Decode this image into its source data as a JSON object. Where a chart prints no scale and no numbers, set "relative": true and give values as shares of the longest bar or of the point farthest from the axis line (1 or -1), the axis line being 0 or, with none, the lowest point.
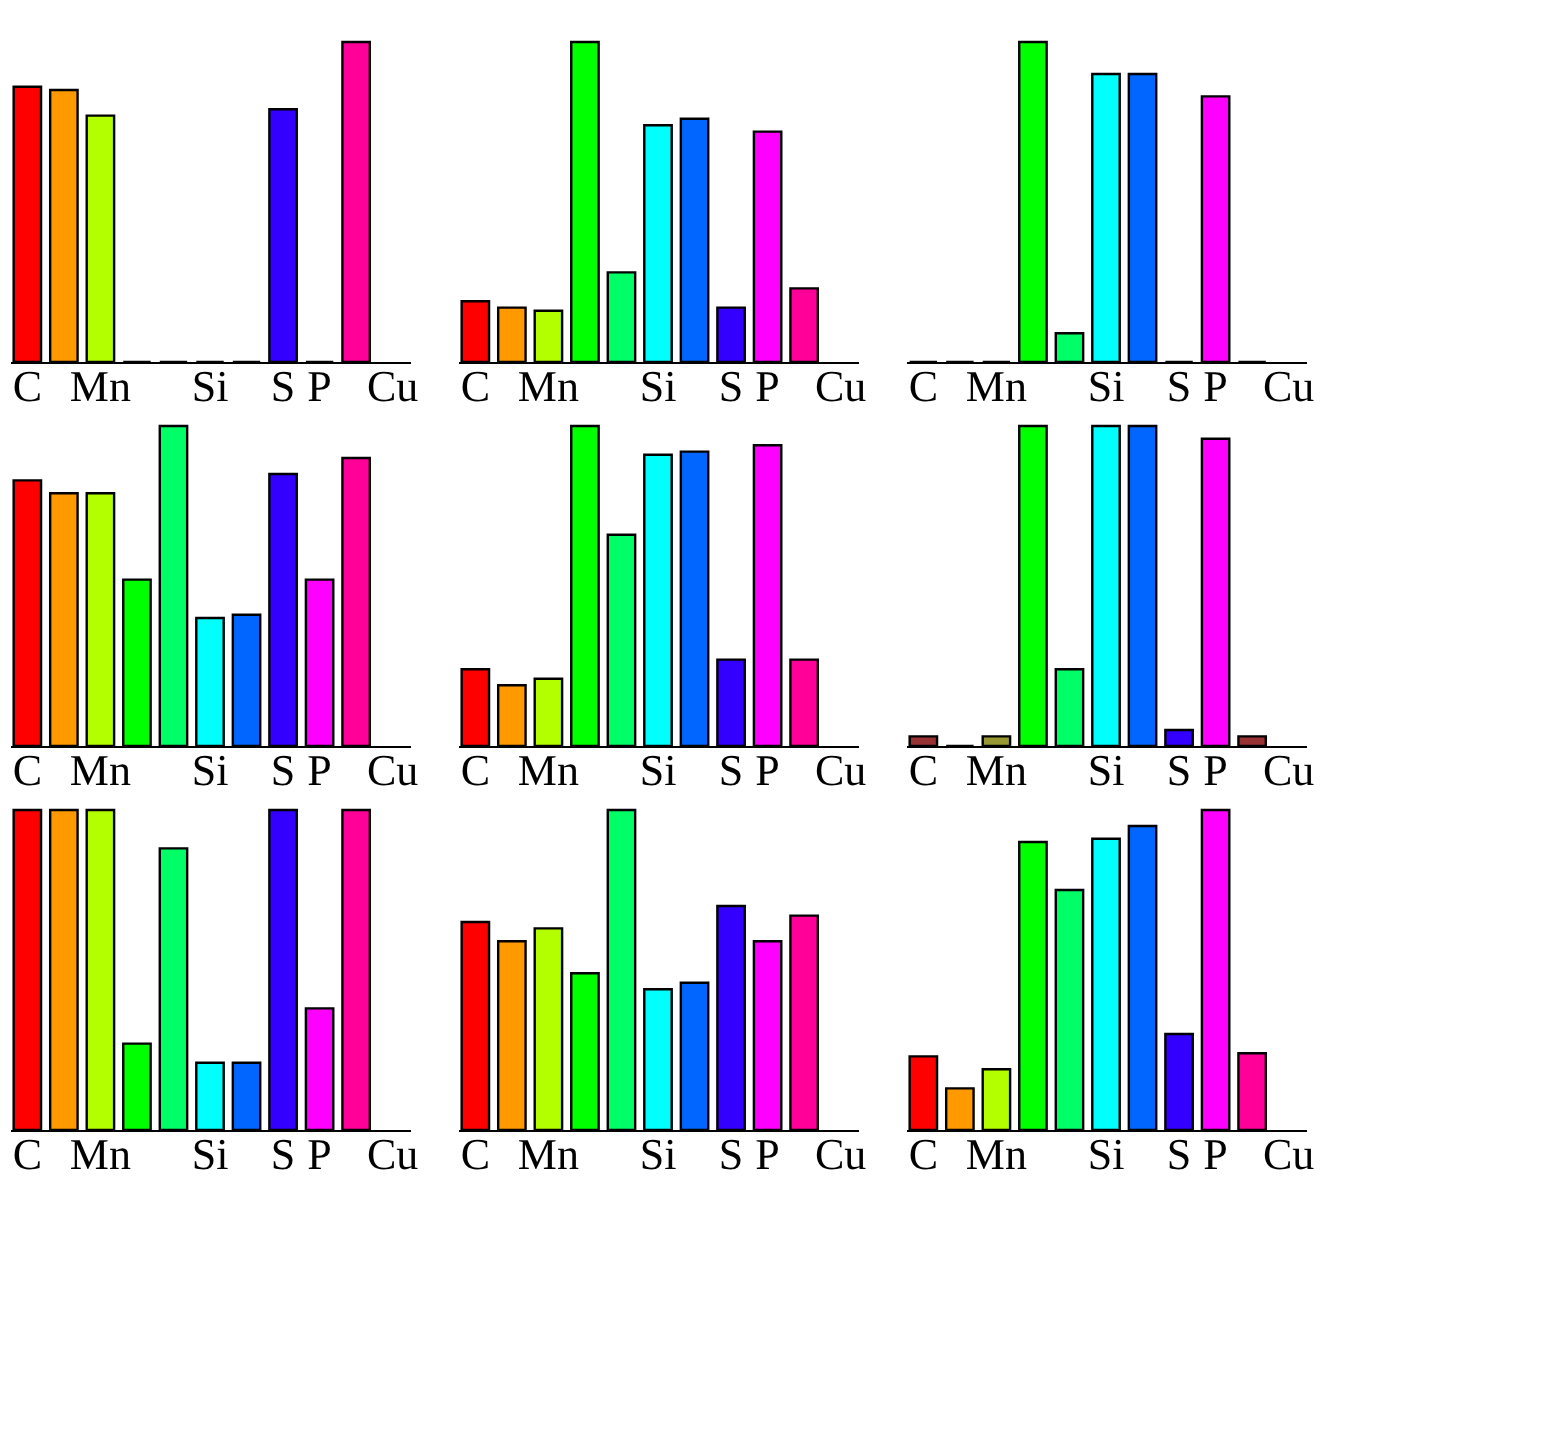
{
  "chart_data": [
    {
      "type": "bar",
      "relative": true,
      "categories": [
        "C",
        null,
        "Mn",
        null,
        null,
        "Si",
        null,
        "S",
        "P",
        null,
        "Cu"
      ],
      "values": [
        0.86,
        0.85,
        0.77,
        0,
        0,
        0,
        0,
        0.79,
        0,
        1,
        null
      ],
      "colors": [
        "#ff0000",
        "#ff9900",
        "#b3ff00",
        "#000000",
        "#000000",
        "#000000",
        "#000000",
        "#3300ff",
        "#000000",
        "#ff0099",
        "#000000"
      ]
    },
    {
      "type": "bar",
      "relative": true,
      "categories": [
        "C",
        null,
        "Mn",
        null,
        null,
        "Si",
        null,
        "S",
        "P",
        null,
        "Cu"
      ],
      "values": [
        0.19,
        0.17,
        0.16,
        1,
        0.28,
        0.74,
        0.76,
        0.17,
        0.72,
        0.23,
        null
      ],
      "colors": [
        "#ff0000",
        "#ff9900",
        "#b3ff00",
        "#00ff00",
        "#00ff66",
        "#00ffff",
        "#0066ff",
        "#3300ff",
        "#ff00ff",
        "#ff0099",
        "#000000"
      ]
    },
    {
      "type": "bar",
      "relative": true,
      "categories": [
        "C",
        null,
        "Mn",
        null,
        null,
        "Si",
        null,
        "S",
        "P",
        null,
        "Cu"
      ],
      "values": [
        0,
        0,
        0,
        1,
        0.09,
        0.9,
        0.9,
        0,
        0.83,
        0,
        null
      ],
      "colors": [
        "#000000",
        "#000000",
        "#000000",
        "#00ff00",
        "#00ff66",
        "#00ffff",
        "#0066ff",
        "#000000",
        "#ff00ff",
        "#000000",
        "#000000"
      ]
    },
    {
      "type": "bar",
      "relative": true,
      "categories": [
        "C",
        null,
        "Mn",
        null,
        null,
        "Si",
        null,
        "S",
        "P",
        null,
        "Cu"
      ],
      "values": [
        0.83,
        0.79,
        0.79,
        0.52,
        1,
        0.4,
        0.41,
        0.85,
        0.52,
        0.9,
        null
      ],
      "colors": [
        "#ff0000",
        "#ff9900",
        "#b3ff00",
        "#00ff00",
        "#00ff66",
        "#00ffff",
        "#0066ff",
        "#3300ff",
        "#ff00ff",
        "#ff0099",
        "#000000"
      ]
    },
    {
      "type": "bar",
      "relative": true,
      "categories": [
        "C",
        null,
        "Mn",
        null,
        null,
        "Si",
        null,
        "S",
        "P",
        null,
        "Cu"
      ],
      "values": [
        0.24,
        0.19,
        0.21,
        1,
        0.66,
        0.91,
        0.92,
        0.27,
        0.94,
        0.27,
        null
      ],
      "colors": [
        "#ff0000",
        "#ff9900",
        "#b3ff00",
        "#00ff00",
        "#00ff66",
        "#00ffff",
        "#0066ff",
        "#3300ff",
        "#ff00ff",
        "#ff0099",
        "#000000"
      ]
    },
    {
      "type": "bar",
      "relative": true,
      "categories": [
        "C",
        null,
        "Mn",
        null,
        null,
        "Si",
        null,
        "S",
        "P",
        null,
        "Cu"
      ],
      "values": [
        0.03,
        0,
        0.03,
        1,
        0.24,
        1,
        1,
        0.05,
        0.96,
        0.03,
        null
      ],
      "colors": [
        "#993333",
        "#000000",
        "#999933",
        "#00ff00",
        "#00ff66",
        "#00ffff",
        "#0066ff",
        "#3300ff",
        "#ff00ff",
        "#993333",
        "#000000"
      ]
    },
    {
      "type": "bar",
      "relative": true,
      "categories": [
        "C",
        null,
        "Mn",
        null,
        null,
        "Si",
        null,
        "S",
        "P",
        null,
        "Cu"
      ],
      "values": [
        1,
        1,
        1,
        0.27,
        0.88,
        0.21,
        0.21,
        1,
        0.38,
        1,
        null
      ],
      "colors": [
        "#ff0000",
        "#ff9900",
        "#b3ff00",
        "#00ff00",
        "#00ff66",
        "#00ffff",
        "#0066ff",
        "#3300ff",
        "#ff00ff",
        "#ff0099",
        "#000000"
      ]
    },
    {
      "type": "bar",
      "relative": true,
      "categories": [
        "C",
        null,
        "Mn",
        null,
        null,
        "Si",
        null,
        "S",
        "P",
        null,
        "Cu"
      ],
      "values": [
        0.65,
        0.59,
        0.63,
        0.49,
        1,
        0.44,
        0.46,
        0.7,
        0.59,
        0.67,
        null
      ],
      "colors": [
        "#ff0000",
        "#ff9900",
        "#b3ff00",
        "#00ff00",
        "#00ff66",
        "#00ffff",
        "#0066ff",
        "#3300ff",
        "#ff00ff",
        "#ff0099",
        "#000000"
      ]
    },
    {
      "type": "bar",
      "relative": true,
      "categories": [
        "C",
        null,
        "Mn",
        null,
        null,
        "Si",
        null,
        "S",
        "P",
        null,
        "Cu"
      ],
      "values": [
        0.23,
        0.13,
        0.19,
        0.9,
        0.75,
        0.91,
        0.95,
        0.3,
        1,
        0.24,
        null
      ],
      "colors": [
        "#ff0000",
        "#ff9900",
        "#b3ff00",
        "#00ff00",
        "#00ff66",
        "#00ffff",
        "#0066ff",
        "#3300ff",
        "#ff00ff",
        "#ff0099",
        "#000000"
      ]
    }
  ]
}
